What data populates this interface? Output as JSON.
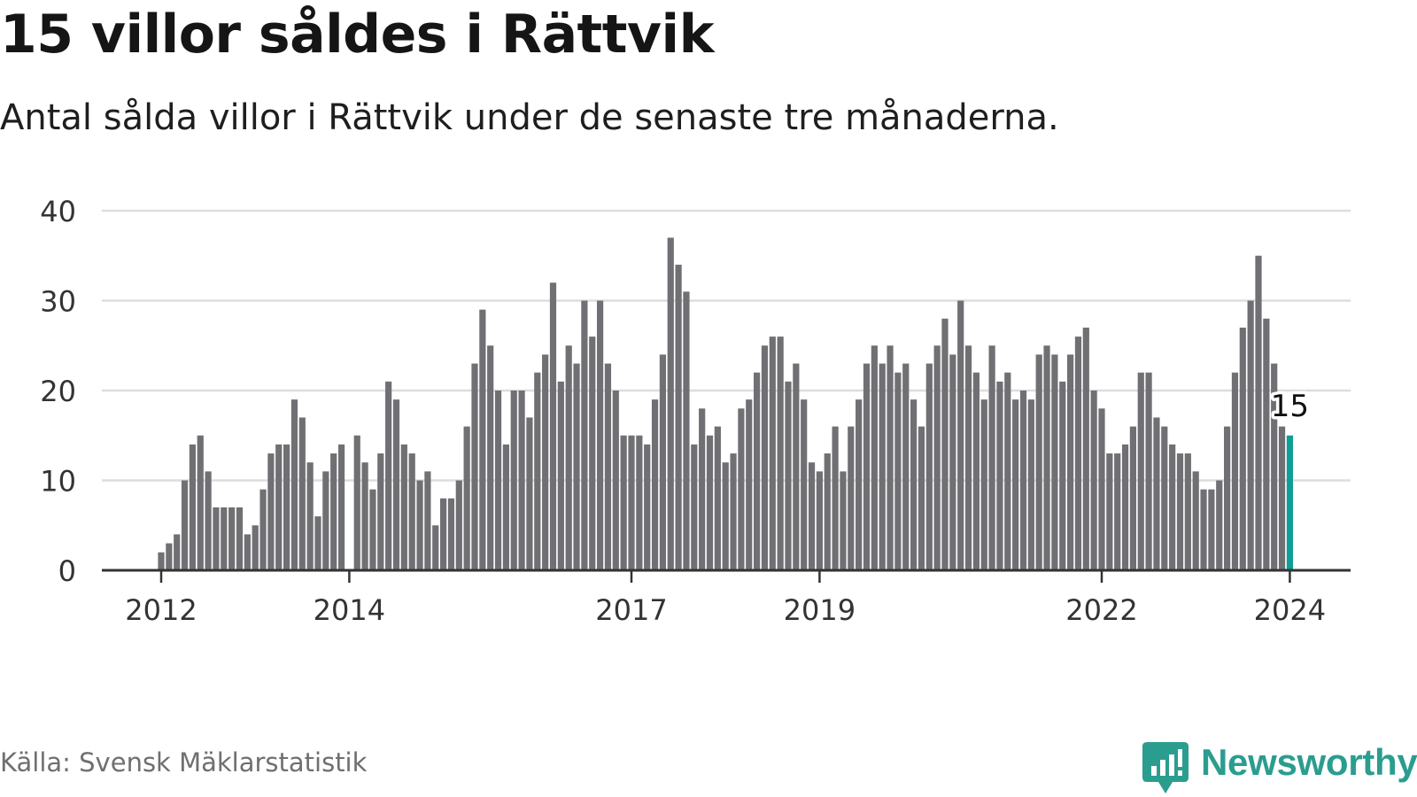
{
  "title": "15 villor såldes i Rättvik",
  "subtitle": "Antal sålda villor i Rättvik under de senaste tre månaderna.",
  "source": "Källa: Svensk Mäklarstatistik",
  "logo": {
    "name": "Newsworthy",
    "color": "#2a9d8f"
  },
  "colors": {
    "bar": "#707074",
    "highlight": "#0f9e96",
    "grid": "#dddddd",
    "axis": "#333333",
    "text": "#333333"
  },
  "chart_data": {
    "type": "bar",
    "title": "15 villor såldes i Rättvik",
    "xlabel": "",
    "ylabel": "",
    "ylim": [
      0,
      40
    ],
    "yticks": [
      "0",
      "10",
      "20",
      "30",
      "40"
    ],
    "xticks": [
      {
        "label": "2012",
        "index": 0
      },
      {
        "label": "2014",
        "index": 24
      },
      {
        "label": "2017",
        "index": 60
      },
      {
        "label": "2019",
        "index": 84
      },
      {
        "label": "2022",
        "index": 120
      },
      {
        "label": "2024",
        "index": 144
      }
    ],
    "period": "2012-01 to 2024-01, monthly (rolling 3-month count)",
    "values": [
      2,
      3,
      4,
      10,
      14,
      15,
      11,
      7,
      7,
      7,
      7,
      4,
      5,
      9,
      13,
      14,
      14,
      19,
      17,
      12,
      6,
      11,
      13,
      14,
      0,
      15,
      12,
      9,
      13,
      21,
      19,
      14,
      13,
      10,
      11,
      5,
      8,
      8,
      10,
      16,
      23,
      29,
      25,
      20,
      14,
      20,
      20,
      17,
      22,
      24,
      32,
      21,
      25,
      23,
      30,
      26,
      30,
      23,
      20,
      15,
      15,
      15,
      14,
      19,
      24,
      37,
      34,
      31,
      14,
      18,
      15,
      16,
      12,
      13,
      18,
      19,
      22,
      25,
      26,
      26,
      21,
      23,
      19,
      12,
      11,
      13,
      16,
      11,
      16,
      19,
      23,
      25,
      23,
      25,
      22,
      23,
      19,
      16,
      23,
      25,
      28,
      24,
      30,
      25,
      22,
      19,
      25,
      21,
      22,
      19,
      20,
      19,
      24,
      25,
      24,
      21,
      24,
      26,
      27,
      20,
      18,
      13,
      13,
      14,
      16,
      22,
      22,
      17,
      16,
      14,
      13,
      13,
      11,
      9,
      9,
      10,
      16,
      22,
      27,
      30,
      35,
      28,
      23,
      16,
      15
    ],
    "highlight": {
      "index": 144,
      "value": 15,
      "label": "15"
    }
  }
}
